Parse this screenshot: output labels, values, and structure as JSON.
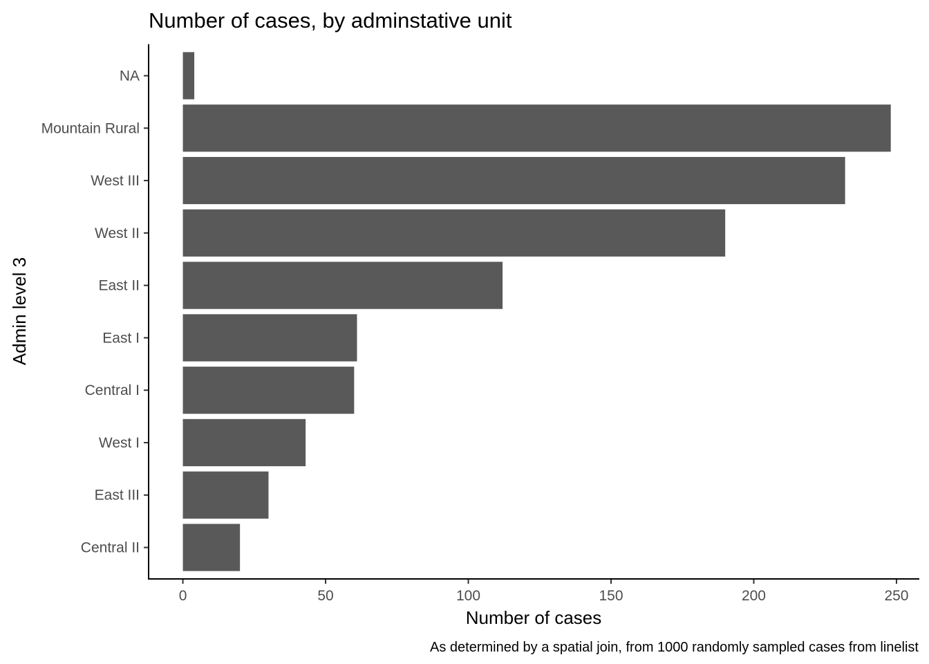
{
  "chart_data": {
    "type": "bar",
    "orientation": "horizontal",
    "title": "Number of cases, by adminstative unit",
    "xlabel": "Number of cases",
    "ylabel": "Admin level 3",
    "caption": "As determined by a spatial join, from 1000 randomly sampled cases from linelist",
    "categories": [
      "NA",
      "Mountain Rural",
      "West III",
      "West II",
      "East II",
      "East I",
      "Central I",
      "West I",
      "East III",
      "Central II"
    ],
    "values": [
      4,
      248,
      232,
      190,
      112,
      61,
      60,
      43,
      30,
      20
    ],
    "xlim": [
      -12,
      258
    ],
    "xticks": [
      0,
      50,
      100,
      150,
      200,
      250
    ],
    "bar_color": "#595959",
    "grid": false,
    "legend": "none"
  }
}
